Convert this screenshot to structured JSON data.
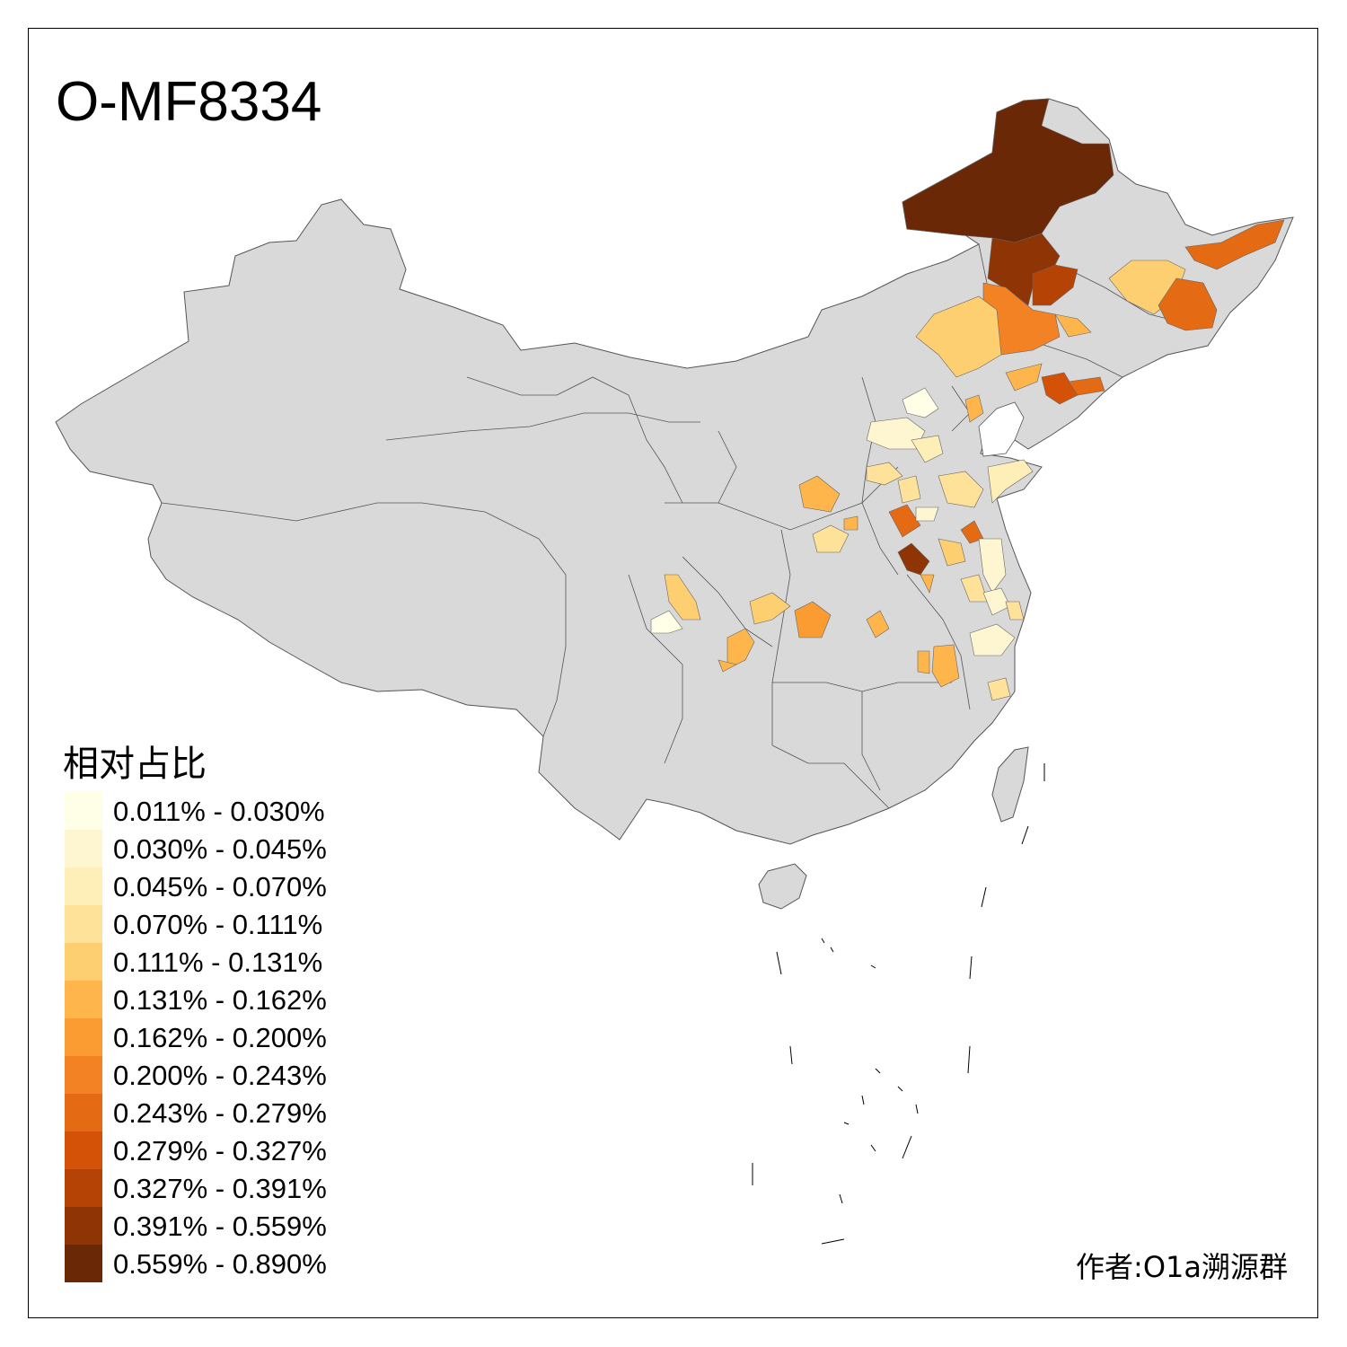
{
  "title": "O-MF8334",
  "legend": {
    "title": "相对占比",
    "items": [
      {
        "label": "0.011% - 0.030%",
        "color": "#FFFEE6"
      },
      {
        "label": "0.030% - 0.045%",
        "color": "#FEF6D0"
      },
      {
        "label": "0.045% - 0.070%",
        "color": "#FEEEB8"
      },
      {
        "label": "0.070% - 0.111%",
        "color": "#FEE29A"
      },
      {
        "label": "0.111% - 0.131%",
        "color": "#FECF70"
      },
      {
        "label": "0.131% - 0.162%",
        "color": "#FEB64C"
      },
      {
        "label": "0.162% - 0.200%",
        "color": "#FB9C32"
      },
      {
        "label": "0.200% - 0.243%",
        "color": "#F38224"
      },
      {
        "label": "0.243% - 0.279%",
        "color": "#E56A14"
      },
      {
        "label": "0.279% - 0.327%",
        "color": "#D35208"
      },
      {
        "label": "0.327% - 0.391%",
        "color": "#B44305"
      },
      {
        "label": "0.391% - 0.559%",
        "color": "#8E3405"
      },
      {
        "label": "0.559% - 0.890%",
        "color": "#6B2806"
      }
    ]
  },
  "map": {
    "base_color": "#D9D9D9",
    "border_color": "#555555"
  },
  "credit": "作者:O1a溯源群"
}
